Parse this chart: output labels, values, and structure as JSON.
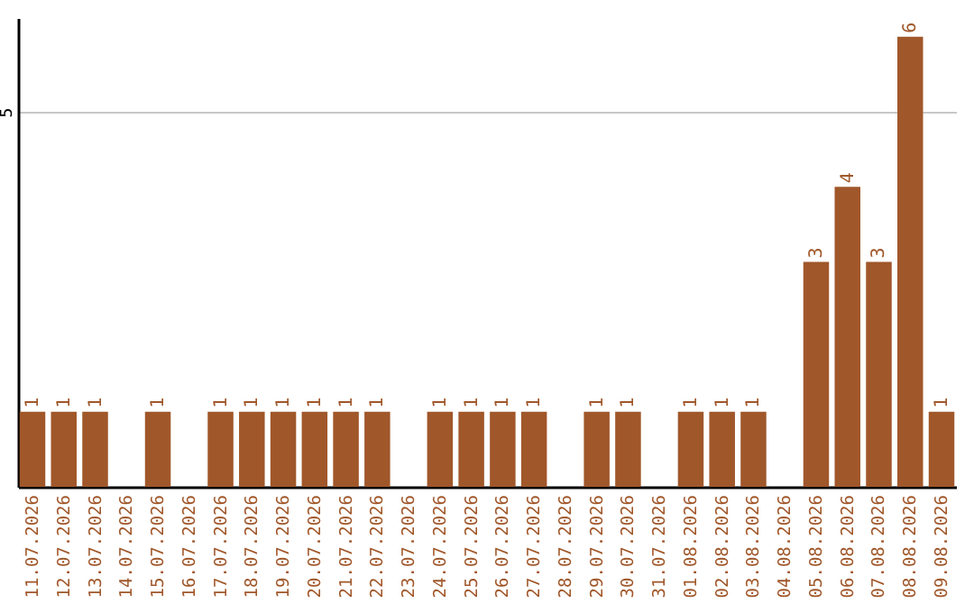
{
  "chart_data": {
    "type": "bar",
    "categories": [
      "11.07.2026",
      "12.07.2026",
      "13.07.2026",
      "14.07.2026",
      "15.07.2026",
      "16.07.2026",
      "17.07.2026",
      "18.07.2026",
      "19.07.2026",
      "20.07.2026",
      "21.07.2026",
      "22.07.2026",
      "23.07.2026",
      "24.07.2026",
      "25.07.2026",
      "26.07.2026",
      "27.07.2026",
      "28.07.2026",
      "29.07.2026",
      "30.07.2026",
      "31.07.2026",
      "01.08.2026",
      "02.08.2026",
      "03.08.2026",
      "04.08.2026",
      "05.08.2026",
      "06.08.2026",
      "07.08.2026",
      "08.08.2026",
      "09.08.2026"
    ],
    "values": [
      1,
      1,
      1,
      0,
      1,
      0,
      1,
      1,
      1,
      1,
      1,
      1,
      0,
      1,
      1,
      1,
      1,
      0,
      1,
      1,
      0,
      1,
      1,
      1,
      0,
      3,
      4,
      3,
      6,
      1
    ],
    "value_labels": [
      "1",
      "1",
      "1",
      null,
      "1",
      null,
      "1",
      "1",
      "1",
      "1",
      "1",
      "1",
      null,
      "1",
      "1",
      "1",
      "1",
      null,
      "1",
      "1",
      null,
      "1",
      "1",
      "1",
      null,
      "3",
      "4",
      "3",
      "6",
      "1"
    ],
    "color": "#a0572a",
    "ylim": [
      0,
      6.25
    ],
    "yticks": [
      5
    ],
    "grid": true
  }
}
